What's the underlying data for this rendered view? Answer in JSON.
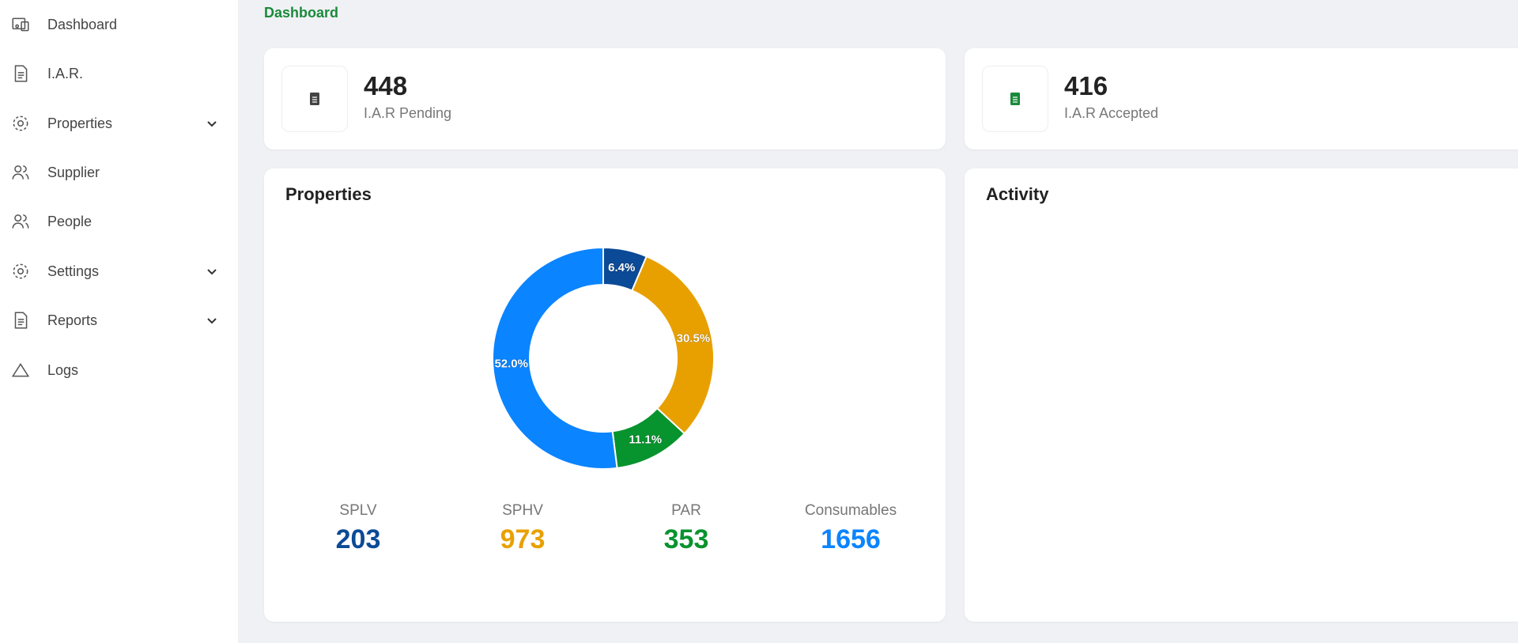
{
  "sidebar": {
    "items": [
      {
        "label": "Dashboard",
        "expandable": false
      },
      {
        "label": "I.A.R.",
        "expandable": false
      },
      {
        "label": "Properties",
        "expandable": true
      },
      {
        "label": "Supplier",
        "expandable": false
      },
      {
        "label": "People",
        "expandable": false
      },
      {
        "label": "Settings",
        "expandable": true
      },
      {
        "label": "Reports",
        "expandable": true
      },
      {
        "label": "Logs",
        "expandable": false
      }
    ]
  },
  "breadcrumb": "Dashboard",
  "stat_cards": [
    {
      "value": 448,
      "label": "I.A.R Pending",
      "icon_color": "#444444"
    },
    {
      "value": 416,
      "label": "I.A.R Accepted",
      "icon_color": "#1a8a3a"
    }
  ],
  "chart_data": {
    "type": "pie",
    "title": "Properties",
    "categories": [
      "SPLV",
      "SPHV",
      "PAR",
      "Consumables"
    ],
    "values": [
      6.4,
      30.5,
      11.1,
      52.0
    ],
    "value_labels": [
      "6.4%",
      "30.5%",
      "11.1%",
      "52.0%"
    ],
    "colors": [
      "#0b4a96",
      "#e8a000",
      "#07932e",
      "#0a84ff"
    ],
    "counts": [
      203,
      973,
      353,
      1656
    ],
    "donut": true
  },
  "activity_card": {
    "title": "Activity"
  }
}
